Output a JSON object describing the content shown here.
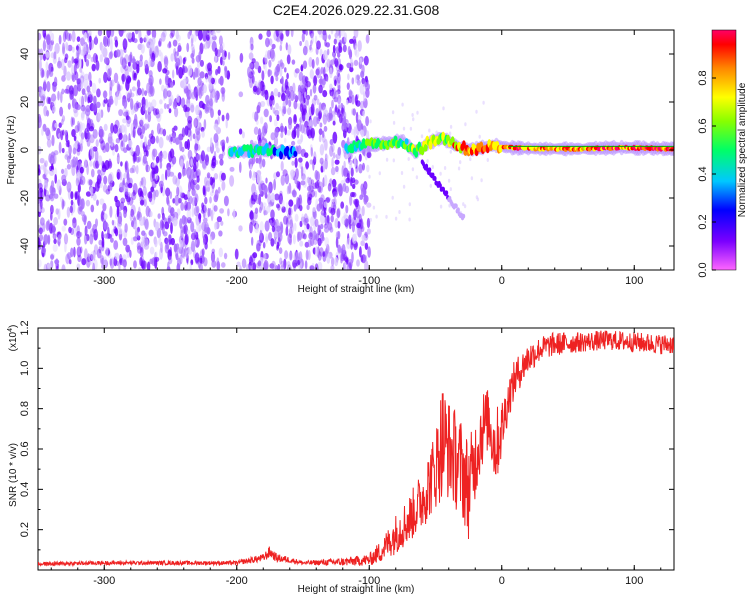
{
  "title": "C2E4.2026.029.22.31.G08",
  "colors": {
    "ribbon_line": "#00aa00",
    "snr_line": "#ee2222",
    "colormap": [
      "#ffffff",
      "#dccbff",
      "#a66cff",
      "#6a00ff",
      "#0000ff",
      "#00c8ff",
      "#00ff66",
      "#ffff00",
      "#ff8800",
      "#ff0000",
      "#ff0088"
    ]
  },
  "chart_data": [
    {
      "type": "heatmap",
      "xlabel": "Height of straight line (km)",
      "ylabel": "Frequency (Hz)",
      "xlim": [
        -350,
        130
      ],
      "ylim": [
        -50,
        50
      ],
      "x_ticks": [
        -300,
        -200,
        -100,
        0,
        100
      ],
      "y_ticks": [
        -40,
        -20,
        0,
        20,
        40
      ],
      "colorbar": {
        "label": "Normalized spectral amplitude",
        "range": [
          0,
          1
        ],
        "ticks": [
          "0.0",
          "0.2",
          "0.4",
          "0.6",
          "0.8"
        ]
      },
      "ridge_track": {
        "x": [
          -205,
          -180,
          -160,
          -115,
          -100,
          -85,
          -75,
          -65,
          -55,
          -45,
          -35,
          -25,
          -15,
          -5,
          5,
          30,
          60,
          90,
          130
        ],
        "y": [
          -1,
          0,
          -1,
          1,
          2,
          3,
          4,
          -1,
          3,
          5,
          2,
          0,
          1,
          2,
          1,
          0.5,
          0.5,
          1,
          0.5
        ],
        "amplitude": [
          0.4,
          0.45,
          0.3,
          0.45,
          0.5,
          0.55,
          0.5,
          0.6,
          0.7,
          0.6,
          0.8,
          0.9,
          0.9,
          0.85,
          0.9,
          0.85,
          0.85,
          0.9,
          1.0
        ]
      },
      "noise_region_x": [
        -350,
        -100
      ],
      "gap_region_x": [
        -210,
        -190
      ]
    },
    {
      "type": "line",
      "xlabel": "Height of straight line (km)",
      "ylabel": "SNR (10 * v/v)",
      "y_multiplier": "(x10",
      "y_multiplier_exp": "4",
      "y_multiplier_close": ")",
      "xlim": [
        -350,
        130
      ],
      "ylim": [
        0,
        1.2
      ],
      "x_ticks": [
        -300,
        -200,
        -100,
        0,
        100
      ],
      "y_ticks": [
        "0.2",
        "0.4",
        "0.6",
        "0.8",
        "1.0",
        "1.2"
      ],
      "series": [
        {
          "x": [
            -350,
            -300,
            -250,
            -200,
            -180,
            -175,
            -170,
            -160,
            -150,
            -120,
            -100,
            -90,
            -80,
            -70,
            -60,
            -50,
            -45,
            -40,
            -35,
            -30,
            -25,
            -20,
            -15,
            -10,
            -5,
            0,
            5,
            10,
            15,
            20,
            30,
            40,
            60,
            80,
            100,
            120,
            130
          ],
          "y": [
            0.03,
            0.035,
            0.035,
            0.035,
            0.06,
            0.09,
            0.06,
            0.05,
            0.035,
            0.04,
            0.05,
            0.1,
            0.18,
            0.25,
            0.35,
            0.5,
            0.65,
            0.6,
            0.55,
            0.5,
            0.4,
            0.55,
            0.7,
            0.75,
            0.6,
            0.7,
            0.85,
            0.95,
            1.0,
            1.05,
            1.1,
            1.12,
            1.13,
            1.14,
            1.13,
            1.12,
            1.12
          ],
          "noise": [
            0.01,
            0.01,
            0.01,
            0.01,
            0.02,
            0.03,
            0.02,
            0.015,
            0.01,
            0.02,
            0.03,
            0.06,
            0.1,
            0.12,
            0.15,
            0.2,
            0.3,
            0.25,
            0.25,
            0.25,
            0.25,
            0.2,
            0.2,
            0.15,
            0.2,
            0.15,
            0.1,
            0.1,
            0.08,
            0.08,
            0.06,
            0.06,
            0.05,
            0.05,
            0.05,
            0.05,
            0.05
          ]
        }
      ]
    }
  ]
}
